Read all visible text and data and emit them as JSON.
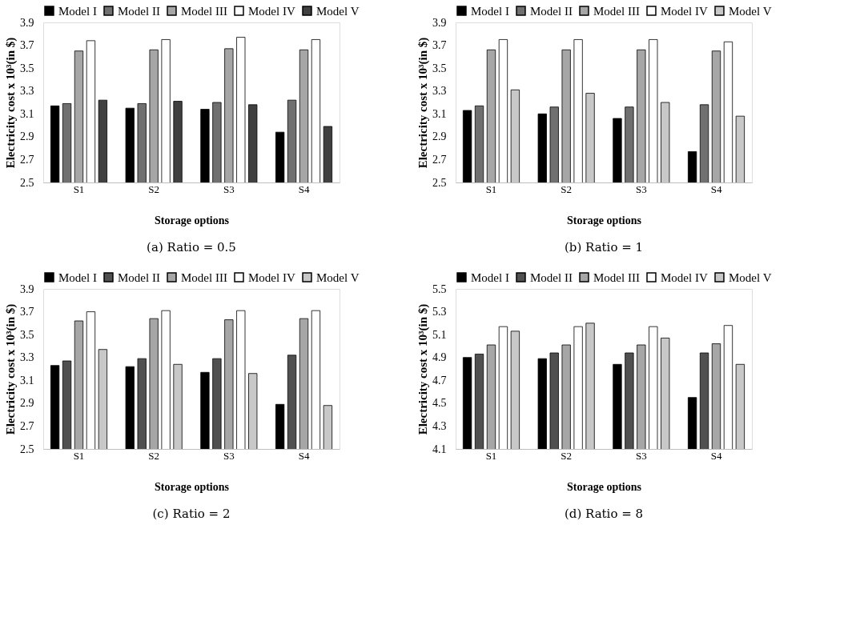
{
  "chart_data": [
    {
      "type": "bar",
      "title": "(a) Ratio = 0.5",
      "xlabel": "Storage options",
      "ylabel": "Electricity cost x 10³(in $)",
      "categories": [
        "S1",
        "S2",
        "S3",
        "S4"
      ],
      "ylim": [
        2.5,
        3.9
      ],
      "yticks": [
        2.5,
        2.7,
        2.9,
        3.1,
        3.3,
        3.5,
        3.7,
        3.9
      ],
      "grid": false,
      "legend": "top",
      "series": [
        {
          "name": "Model I",
          "color": "#000000",
          "values": [
            3.17,
            3.15,
            3.14,
            2.94
          ]
        },
        {
          "name": "Model II",
          "color": "#707070",
          "values": [
            3.19,
            3.19,
            3.2,
            3.22
          ]
        },
        {
          "name": "Model III",
          "color": "#a6a6a6",
          "values": [
            3.65,
            3.66,
            3.67,
            3.66
          ]
        },
        {
          "name": "Model IV",
          "color": "#ffffff",
          "values": [
            3.74,
            3.75,
            3.77,
            3.75
          ]
        },
        {
          "name": "Model V",
          "color": "#404040",
          "values": [
            3.22,
            3.21,
            3.18,
            2.99
          ]
        }
      ]
    },
    {
      "type": "bar",
      "title": "(b) Ratio = 1",
      "xlabel": "Storage options",
      "ylabel": "Electricity cost x 10³(in $)",
      "categories": [
        "S1",
        "S2",
        "S3",
        "S4"
      ],
      "ylim": [
        2.5,
        3.9
      ],
      "yticks": [
        2.5,
        2.7,
        2.9,
        3.1,
        3.3,
        3.5,
        3.7,
        3.9
      ],
      "grid": false,
      "legend": "top",
      "series": [
        {
          "name": "Model I",
          "color": "#000000",
          "values": [
            3.13,
            3.1,
            3.06,
            2.77
          ]
        },
        {
          "name": "Model II",
          "color": "#707070",
          "values": [
            3.17,
            3.16,
            3.16,
            3.18
          ]
        },
        {
          "name": "Model III",
          "color": "#a6a6a6",
          "values": [
            3.66,
            3.66,
            3.66,
            3.65
          ]
        },
        {
          "name": "Model IV",
          "color": "#ffffff",
          "values": [
            3.75,
            3.75,
            3.75,
            3.73
          ]
        },
        {
          "name": "Model V",
          "color": "#c8c8c8",
          "values": [
            3.31,
            3.28,
            3.2,
            3.08
          ]
        }
      ]
    },
    {
      "type": "bar",
      "title": "(c) Ratio = 2",
      "xlabel": "Storage options",
      "ylabel": "Electricity cost x 10³(in $)",
      "categories": [
        "S1",
        "S2",
        "S3",
        "S4"
      ],
      "ylim": [
        2.5,
        3.9
      ],
      "yticks": [
        2.5,
        2.7,
        2.9,
        3.1,
        3.3,
        3.5,
        3.7,
        3.9
      ],
      "grid": false,
      "legend": "top",
      "series": [
        {
          "name": "Model I",
          "color": "#000000",
          "values": [
            3.23,
            3.22,
            3.17,
            2.89
          ]
        },
        {
          "name": "Model II",
          "color": "#505050",
          "values": [
            3.27,
            3.29,
            3.29,
            3.32
          ]
        },
        {
          "name": "Model III",
          "color": "#a6a6a6",
          "values": [
            3.62,
            3.64,
            3.63,
            3.64
          ]
        },
        {
          "name": "Model IV",
          "color": "#ffffff",
          "values": [
            3.7,
            3.71,
            3.71,
            3.71
          ]
        },
        {
          "name": "Model V",
          "color": "#c8c8c8",
          "values": [
            3.37,
            3.24,
            3.16,
            2.88
          ]
        }
      ]
    },
    {
      "type": "bar",
      "title": "(d) Ratio = 8",
      "xlabel": "Storage options",
      "ylabel": "Electricity cost x 10³(in $)",
      "categories": [
        "S1",
        "S2",
        "S3",
        "S4"
      ],
      "ylim": [
        4.1,
        5.5
      ],
      "yticks": [
        4.1,
        4.3,
        4.5,
        4.7,
        4.9,
        5.1,
        5.3,
        5.5
      ],
      "grid": false,
      "legend": "top",
      "series": [
        {
          "name": "Model I",
          "color": "#000000",
          "values": [
            4.9,
            4.89,
            4.84,
            4.55
          ]
        },
        {
          "name": "Model II",
          "color": "#505050",
          "values": [
            4.93,
            4.94,
            4.94,
            4.94
          ]
        },
        {
          "name": "Model III",
          "color": "#a6a6a6",
          "values": [
            5.01,
            5.01,
            5.01,
            5.02
          ]
        },
        {
          "name": "Model IV",
          "color": "#ffffff",
          "values": [
            5.17,
            5.17,
            5.17,
            5.18
          ]
        },
        {
          "name": "Model V",
          "color": "#c8c8c8",
          "values": [
            5.13,
            5.2,
            5.07,
            4.84
          ]
        }
      ]
    }
  ]
}
